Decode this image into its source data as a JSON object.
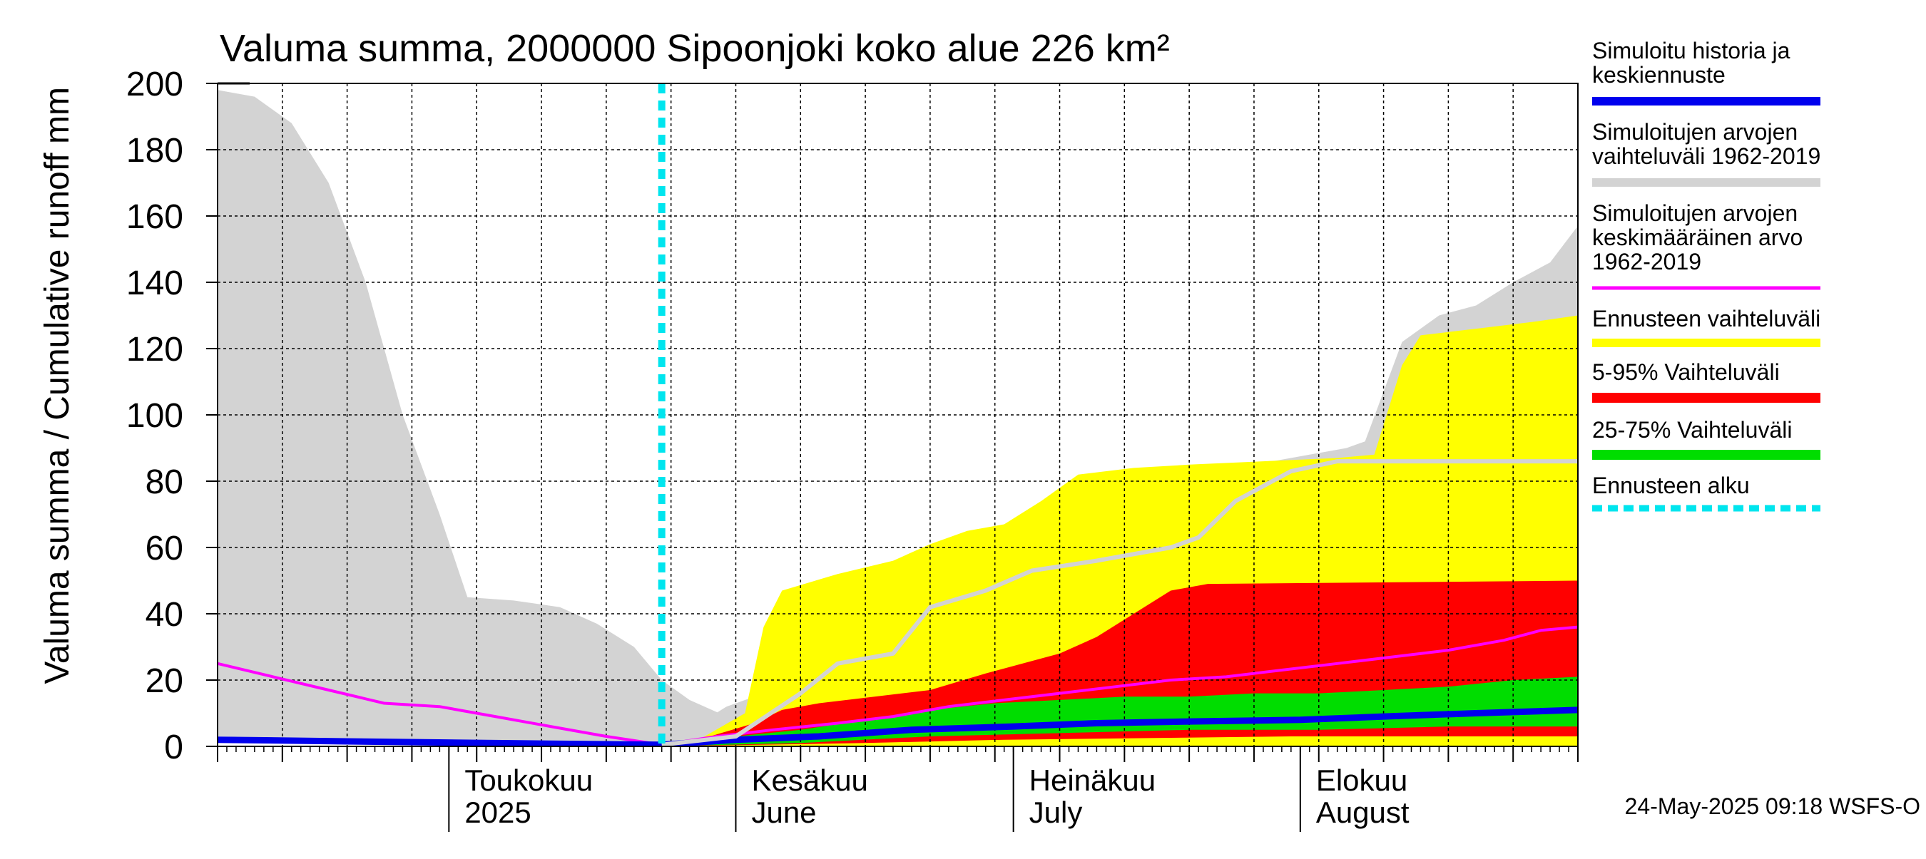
{
  "chart_data": {
    "type": "area",
    "title": "Valuma summa, 2000000 Sipoonjoki koko alue 226 km²",
    "ylabel": "Valuma summa / Cumulative runoff",
    "yunit": "mm",
    "ylim": [
      0,
      200
    ],
    "yticks": [
      0,
      20,
      40,
      60,
      80,
      100,
      120,
      140,
      160,
      180,
      200
    ],
    "xlim": [
      "2025-04-06",
      "2025-08-31"
    ],
    "grid": true,
    "legend_position": "right",
    "forecast_start": "2025-05-24",
    "month_labels": [
      {
        "date": "2025-05-01",
        "line1": "Toukokuu",
        "line2": "2025"
      },
      {
        "date": "2025-06-01",
        "line1": "Kesäkuu",
        "line2": "June"
      },
      {
        "date": "2025-07-01",
        "line1": "Heinäkuu",
        "line2": "July"
      },
      {
        "date": "2025-08-01",
        "line1": "Elokuu",
        "line2": "August"
      }
    ],
    "series": [
      {
        "name": "Simuloitujen arvojen vaihteluväli 1962-2019",
        "kind": "band",
        "color": "#d3d3d3",
        "upper": [
          [
            "2025-04-06",
            198
          ],
          [
            "2025-04-10",
            196
          ],
          [
            "2025-04-14",
            188
          ],
          [
            "2025-04-18",
            170
          ],
          [
            "2025-04-22",
            140
          ],
          [
            "2025-04-26",
            100
          ],
          [
            "2025-04-30",
            70
          ],
          [
            "2025-05-03",
            45
          ],
          [
            "2025-05-08",
            44
          ],
          [
            "2025-05-13",
            42
          ],
          [
            "2025-05-17",
            37
          ],
          [
            "2025-05-21",
            30
          ],
          [
            "2025-05-24",
            20
          ],
          [
            "2025-05-27",
            14
          ],
          [
            "2025-05-31",
            9
          ],
          [
            "2025-06-03",
            5
          ],
          [
            "2025-05-24",
            1
          ],
          [
            "2025-05-27",
            5
          ],
          [
            "2025-05-31",
            12
          ],
          [
            "2025-06-04",
            16
          ],
          [
            "2025-06-08",
            19
          ],
          [
            "2025-06-12",
            27
          ],
          [
            "2025-06-16",
            33
          ],
          [
            "2025-06-20",
            40
          ],
          [
            "2025-06-24",
            46
          ],
          [
            "2025-06-28",
            52
          ],
          [
            "2025-07-02",
            55
          ],
          [
            "2025-07-06",
            58
          ],
          [
            "2025-07-10",
            60
          ],
          [
            "2025-07-13",
            64
          ],
          [
            "2025-07-17",
            78
          ],
          [
            "2025-07-21",
            82
          ],
          [
            "2025-07-25",
            85
          ],
          [
            "2025-07-29",
            86
          ],
          [
            "2025-08-02",
            88
          ],
          [
            "2025-08-06",
            90
          ],
          [
            "2025-08-08",
            92
          ],
          [
            "2025-08-12",
            122
          ],
          [
            "2025-08-16",
            130
          ],
          [
            "2025-08-20",
            133
          ],
          [
            "2025-08-24",
            140
          ],
          [
            "2025-08-28",
            146
          ],
          [
            "2025-08-31",
            157
          ]
        ],
        "lower": [
          [
            "2025-04-06",
            3
          ],
          [
            "2025-05-24",
            0
          ],
          [
            "2025-08-31",
            0
          ]
        ]
      },
      {
        "name": "Ennusteen vaihteluväli",
        "kind": "band",
        "color": "#ffff00",
        "upper": [
          [
            "2025-05-24",
            1
          ],
          [
            "2025-05-28",
            2
          ],
          [
            "2025-06-02",
            10
          ],
          [
            "2025-06-04",
            36
          ],
          [
            "2025-06-06",
            47
          ],
          [
            "2025-06-12",
            52
          ],
          [
            "2025-06-18",
            56
          ],
          [
            "2025-06-22",
            61
          ],
          [
            "2025-06-26",
            65
          ],
          [
            "2025-06-30",
            67
          ],
          [
            "2025-07-04",
            74
          ],
          [
            "2025-07-08",
            82
          ],
          [
            "2025-07-14",
            84
          ],
          [
            "2025-07-20",
            85
          ],
          [
            "2025-07-28",
            86
          ],
          [
            "2025-08-05",
            87
          ],
          [
            "2025-08-09",
            88
          ],
          [
            "2025-08-12",
            115
          ],
          [
            "2025-08-14",
            124
          ],
          [
            "2025-08-20",
            126
          ],
          [
            "2025-08-26",
            128
          ],
          [
            "2025-08-31",
            130
          ]
        ],
        "lower": [
          [
            "2025-05-24",
            0
          ],
          [
            "2025-08-31",
            0
          ]
        ]
      },
      {
        "name": "5-95% Vaihteluväli",
        "kind": "band",
        "color": "#ff0000",
        "upper": [
          [
            "2025-05-24",
            1
          ],
          [
            "2025-05-28",
            2
          ],
          [
            "2025-06-03",
            7
          ],
          [
            "2025-06-06",
            11
          ],
          [
            "2025-06-10",
            13
          ],
          [
            "2025-06-16",
            15
          ],
          [
            "2025-06-22",
            17
          ],
          [
            "2025-06-28",
            22
          ],
          [
            "2025-07-02",
            25
          ],
          [
            "2025-07-06",
            28
          ],
          [
            "2025-07-10",
            33
          ],
          [
            "2025-07-14",
            40
          ],
          [
            "2025-07-18",
            47
          ],
          [
            "2025-07-22",
            49
          ],
          [
            "2025-08-31",
            50
          ]
        ],
        "lower": [
          [
            "2025-05-24",
            0
          ],
          [
            "2025-06-15",
            1
          ],
          [
            "2025-06-30",
            2
          ],
          [
            "2025-07-31",
            3
          ],
          [
            "2025-08-31",
            3
          ]
        ]
      },
      {
        "name": "25-75% Vaihteluväli",
        "kind": "band",
        "color": "#00dd00",
        "upper": [
          [
            "2025-05-24",
            1
          ],
          [
            "2025-06-01",
            3
          ],
          [
            "2025-06-08",
            5
          ],
          [
            "2025-06-15",
            8
          ],
          [
            "2025-06-22",
            11
          ],
          [
            "2025-06-29",
            13
          ],
          [
            "2025-07-06",
            14
          ],
          [
            "2025-07-13",
            15
          ],
          [
            "2025-07-20",
            15
          ],
          [
            "2025-07-27",
            16
          ],
          [
            "2025-08-03",
            16
          ],
          [
            "2025-08-10",
            17
          ],
          [
            "2025-08-17",
            18
          ],
          [
            "2025-08-24",
            20
          ],
          [
            "2025-08-31",
            21
          ]
        ],
        "lower": [
          [
            "2025-05-24",
            0
          ],
          [
            "2025-06-08",
            1
          ],
          [
            "2025-06-22",
            3
          ],
          [
            "2025-07-06",
            4
          ],
          [
            "2025-07-20",
            5
          ],
          [
            "2025-08-03",
            5
          ],
          [
            "2025-08-17",
            6
          ],
          [
            "2025-08-31",
            6
          ]
        ]
      },
      {
        "name": "Simuloitujen arvojen keskimääräinen arvo 1962-2019",
        "kind": "line",
        "color": "#ff00ff",
        "values": [
          [
            "2025-04-06",
            25
          ],
          [
            "2025-04-12",
            21
          ],
          [
            "2025-04-18",
            17
          ],
          [
            "2025-04-24",
            13
          ],
          [
            "2025-04-30",
            12
          ],
          [
            "2025-05-06",
            9
          ],
          [
            "2025-05-12",
            6
          ],
          [
            "2025-05-18",
            3
          ],
          [
            "2025-05-24",
            0.5
          ],
          [
            "2025-05-30",
            3
          ],
          [
            "2025-06-05",
            5
          ],
          [
            "2025-06-12",
            7
          ],
          [
            "2025-06-18",
            9
          ],
          [
            "2025-06-24",
            12
          ],
          [
            "2025-06-30",
            14
          ],
          [
            "2025-07-06",
            16
          ],
          [
            "2025-07-12",
            18
          ],
          [
            "2025-07-18",
            20
          ],
          [
            "2025-07-24",
            21
          ],
          [
            "2025-07-30",
            23
          ],
          [
            "2025-08-05",
            25
          ],
          [
            "2025-08-11",
            27
          ],
          [
            "2025-08-17",
            29
          ],
          [
            "2025-08-23",
            32
          ],
          [
            "2025-08-27",
            35
          ],
          [
            "2025-08-31",
            36
          ]
        ]
      },
      {
        "name": "Simuloitu historia ja keskiennuste",
        "kind": "line",
        "color": "#0000ee",
        "values": [
          [
            "2025-04-06",
            2
          ],
          [
            "2025-04-20",
            1.5
          ],
          [
            "2025-05-05",
            1
          ],
          [
            "2025-05-24",
            0.5
          ],
          [
            "2025-06-01",
            2
          ],
          [
            "2025-06-10",
            3
          ],
          [
            "2025-06-20",
            5
          ],
          [
            "2025-07-01",
            6
          ],
          [
            "2025-07-10",
            7
          ],
          [
            "2025-07-20",
            7.5
          ],
          [
            "2025-08-01",
            8
          ],
          [
            "2025-08-10",
            9
          ],
          [
            "2025-08-20",
            10
          ],
          [
            "2025-08-31",
            11
          ]
        ]
      },
      {
        "name": "",
        "kind": "line",
        "color": "#d3d3d3",
        "values": [
          [
            "2025-05-24",
            0.5
          ],
          [
            "2025-06-01",
            3
          ],
          [
            "2025-06-08",
            16
          ],
          [
            "2025-06-12",
            25
          ],
          [
            "2025-06-18",
            28
          ],
          [
            "2025-06-22",
            42
          ],
          [
            "2025-06-28",
            47
          ],
          [
            "2025-07-03",
            53
          ],
          [
            "2025-07-10",
            56
          ],
          [
            "2025-07-18",
            60
          ],
          [
            "2025-07-21",
            63
          ],
          [
            "2025-07-25",
            74
          ],
          [
            "2025-07-31",
            83
          ],
          [
            "2025-08-05",
            86
          ],
          [
            "2025-08-31",
            86
          ]
        ]
      },
      {
        "name": "Ennusteen alku",
        "kind": "vline",
        "color": "#00e5ee"
      }
    ],
    "legend": [
      {
        "text": [
          "Simuloitu historia ja",
          "keskiennuste"
        ],
        "color": "#0000ee",
        "style": "solid"
      },
      {
        "text": [
          "Simuloitujen arvojen",
          "vaihteluväli 1962-2019"
        ],
        "color": "#d3d3d3",
        "style": "solid"
      },
      {
        "text": [
          "Simuloitujen arvojen",
          "keskimääräinen arvo",
          "   1962-2019"
        ],
        "color": "#ff00ff",
        "style": "solid"
      },
      {
        "text": [
          "Ennusteen vaihteluväli"
        ],
        "color": "#ffff00",
        "style": "solid"
      },
      {
        "text": [
          "5-95% Vaihteluväli"
        ],
        "color": "#ff0000",
        "style": "solid"
      },
      {
        "text": [
          "25-75% Vaihteluväli"
        ],
        "color": "#00dd00",
        "style": "solid"
      },
      {
        "text": [
          "Ennusteen alku"
        ],
        "color": "#00e5ee",
        "style": "dashed"
      }
    ],
    "footer": "24-May-2025 09:18 WSFS-O"
  }
}
